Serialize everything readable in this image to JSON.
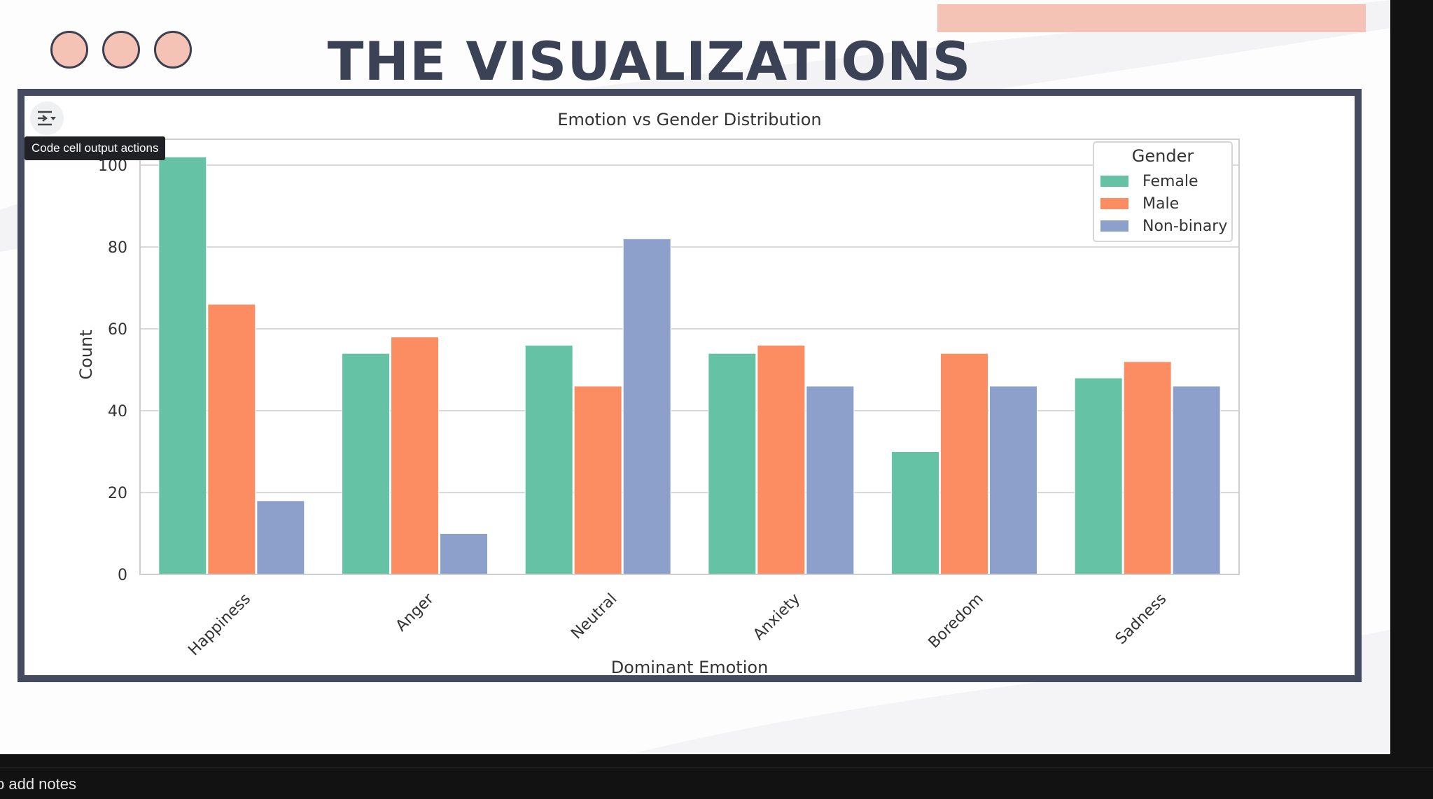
{
  "slide": {
    "title": "THE VISUALIZATIONS",
    "accent_color": "#f4c3b6",
    "title_color": "#3b4256",
    "frame_color": "#444b61"
  },
  "notebook": {
    "output_actions_tooltip": "Code cell output actions",
    "output_actions_icon": "output-actions-icon"
  },
  "footer": {
    "notes_hint": "o add notes"
  },
  "chart_data": {
    "type": "bar",
    "title": "Emotion vs Gender Distribution",
    "xlabel": "Dominant Emotion",
    "ylabel": "Count",
    "categories": [
      "Happiness",
      "Anger",
      "Neutral",
      "Anxiety",
      "Boredom",
      "Sadness"
    ],
    "series": [
      {
        "name": "Female",
        "color": "#66c2a5",
        "values": [
          102,
          54,
          56,
          54,
          30,
          48
        ]
      },
      {
        "name": "Male",
        "color": "#fc8d62",
        "values": [
          66,
          58,
          46,
          56,
          54,
          52
        ]
      },
      {
        "name": "Non-binary",
        "color": "#8da0cb",
        "values": [
          18,
          10,
          82,
          46,
          46,
          46
        ]
      }
    ],
    "ylim": [
      0,
      100
    ],
    "yticks": [
      0,
      20,
      40,
      60,
      80,
      100
    ],
    "grid": true,
    "legend": {
      "title": "Gender",
      "position": "top-right"
    }
  }
}
